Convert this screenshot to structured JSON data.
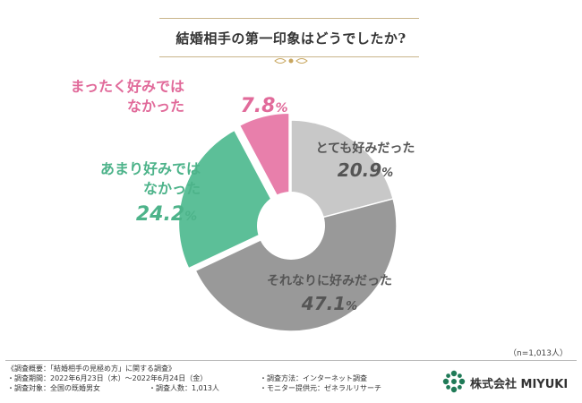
{
  "title": "結婚相手の第一印象はどうでしたか?",
  "chart_data": {
    "type": "pie",
    "title": "結婚相手の第一印象はどうでしたか?",
    "style": "donut",
    "unit": "%",
    "slices": [
      {
        "label": "とても好みだった",
        "value": 20.9,
        "display": "20.9",
        "color": "#c8c8c8",
        "label_color": "#555555"
      },
      {
        "label": "それなりに好みだった",
        "value": 47.1,
        "display": "47.1",
        "color": "#999999",
        "label_color": "#555555"
      },
      {
        "label": "あまり好みでは\nなかった",
        "value": 24.2,
        "display": "24.2",
        "color": "#5cbf98",
        "label_color": "#4db38a"
      },
      {
        "label": "まったく好みでは\nなかった",
        "value": 7.8,
        "display": "7.8",
        "color": "#e87fab",
        "label_color": "#e16a9a"
      }
    ]
  },
  "sample_size": "（n=1,013人）",
  "survey": {
    "heading": "《調査概要：「結婚相手の見極め方」に関する調査》",
    "period": "・調査期間：2022年6月23日（木）〜2022年6月24日（金）",
    "method": "・調査方法：インターネット調査",
    "target": "・調査対象：全国の既婚男女",
    "count": "・調査人数：1,013人",
    "provider": "・モニター提供元：ゼネラルリサーチ"
  },
  "brand": {
    "name": "株式会社 MIYUKI",
    "color": "#1f7a57"
  }
}
